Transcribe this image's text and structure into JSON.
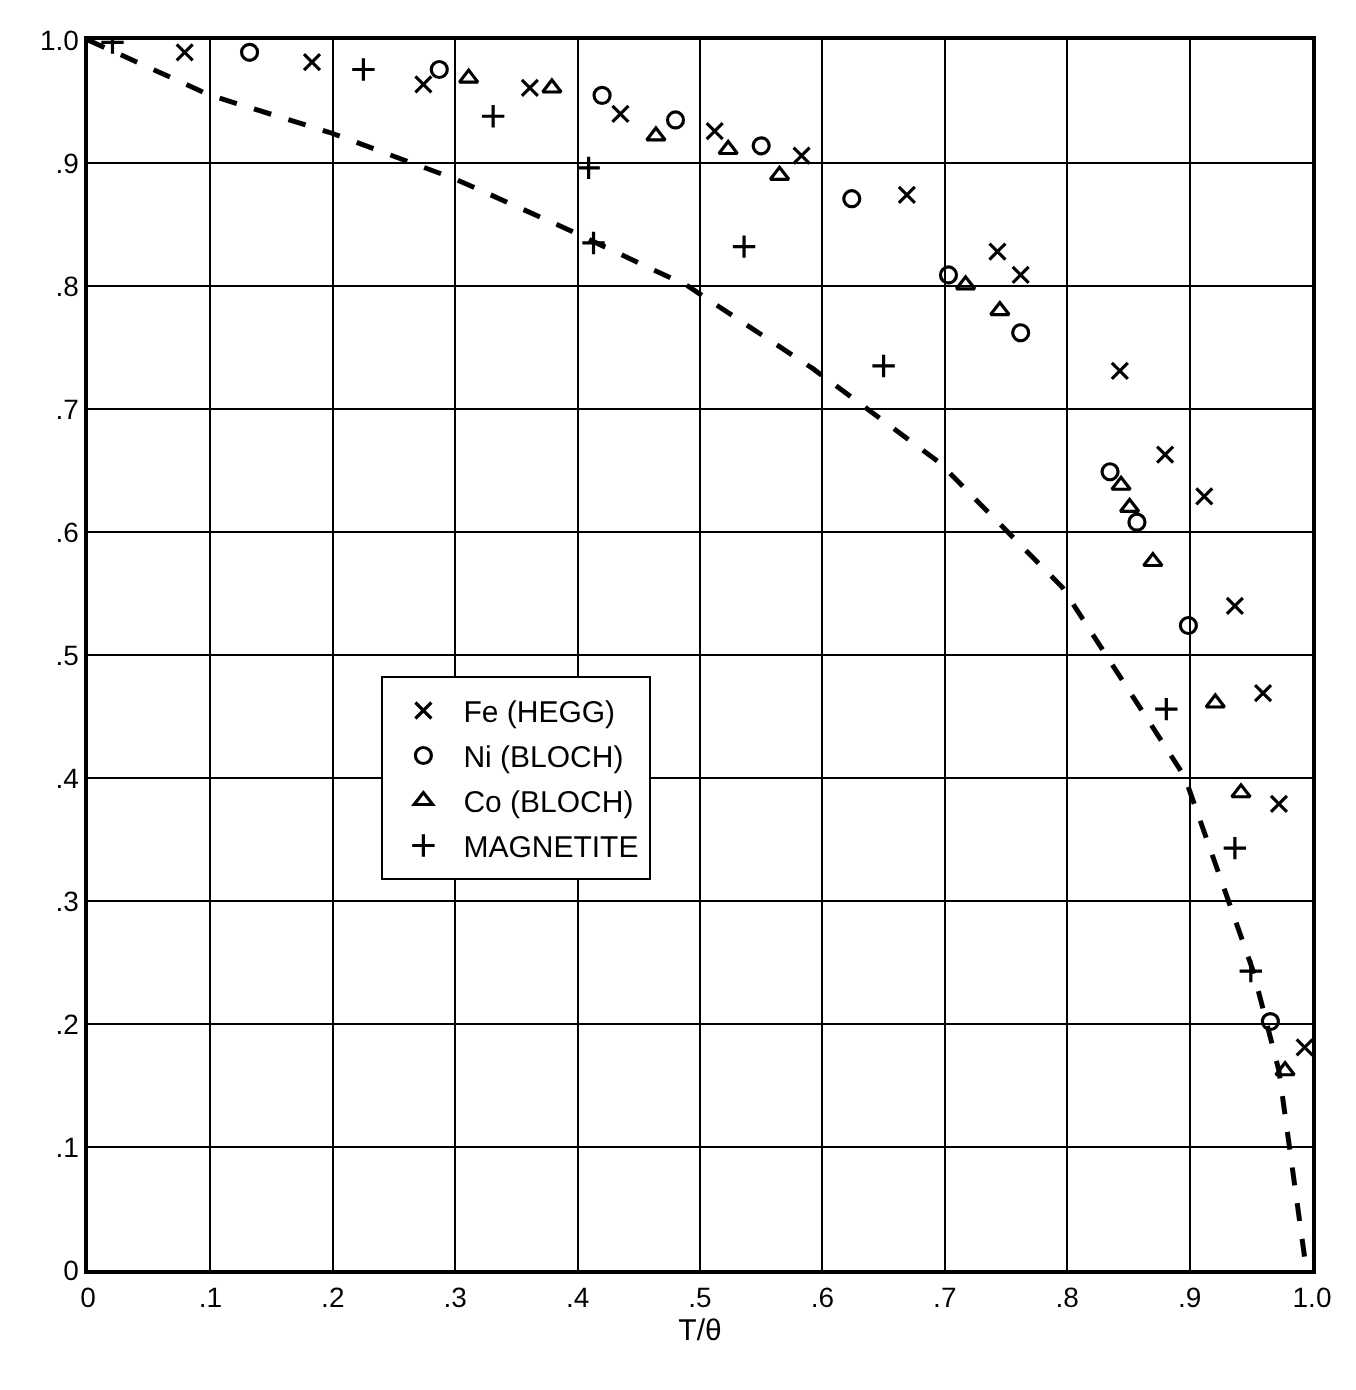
{
  "chart_data": {
    "type": "scatter",
    "xlabel": "T/θ",
    "xlim": [
      0,
      1
    ],
    "ylim": [
      0,
      1
    ],
    "xticks": [
      {
        "value": 0,
        "label": "0"
      },
      {
        "value": 0.1,
        "label": ".1"
      },
      {
        "value": 0.2,
        "label": ".2"
      },
      {
        "value": 0.3,
        "label": ".3"
      },
      {
        "value": 0.4,
        "label": ".4"
      },
      {
        "value": 0.5,
        "label": ".5"
      },
      {
        "value": 0.6,
        "label": ".6"
      },
      {
        "value": 0.7,
        "label": ".7"
      },
      {
        "value": 0.8,
        "label": ".8"
      },
      {
        "value": 0.9,
        "label": ".9"
      },
      {
        "value": 1,
        "label": "1.0"
      }
    ],
    "yticks": [
      {
        "value": 0,
        "label": "0"
      },
      {
        "value": 0.1,
        "label": ".1"
      },
      {
        "value": 0.2,
        "label": ".2"
      },
      {
        "value": 0.3,
        "label": ".3"
      },
      {
        "value": 0.4,
        "label": ".4"
      },
      {
        "value": 0.5,
        "label": ".5"
      },
      {
        "value": 0.6,
        "label": ".6"
      },
      {
        "value": 0.7,
        "label": ".7"
      },
      {
        "value": 0.8,
        "label": ".8"
      },
      {
        "value": 0.9,
        "label": ".9"
      },
      {
        "value": 1,
        "label": "1.0"
      }
    ],
    "grid": true,
    "legend": "center",
    "series": [
      {
        "name": "Fe (HEGG)",
        "color": "#000000",
        "marker": "cross",
        "x": [
          0.079,
          0.183,
          0.274,
          0.361,
          0.435,
          0.512,
          0.583,
          0.669,
          0.743,
          0.762,
          0.843,
          0.88,
          0.912,
          0.937,
          0.96,
          0.973,
          0.994
        ],
        "values": [
          0.99,
          0.982,
          0.964,
          0.961,
          0.94,
          0.926,
          0.906,
          0.874,
          0.828,
          0.809,
          0.731,
          0.663,
          0.629,
          0.54,
          0.469,
          0.379,
          0.181
        ]
      },
      {
        "name": "Ni (BLOCH)",
        "color": "#000000",
        "marker": "circle",
        "x": [
          0.132,
          0.287,
          0.42,
          0.48,
          0.55,
          0.624,
          0.703,
          0.762,
          0.835,
          0.857,
          0.899,
          0.966
        ],
        "values": [
          0.99,
          0.976,
          0.955,
          0.935,
          0.914,
          0.871,
          0.809,
          0.762,
          0.649,
          0.608,
          0.524,
          0.202
        ]
      },
      {
        "name": "Co (BLOCH)",
        "color": "#000000",
        "marker": "triangle",
        "x": [
          0.311,
          0.379,
          0.464,
          0.523,
          0.565,
          0.717,
          0.745,
          0.844,
          0.851,
          0.87,
          0.921,
          0.942,
          0.978
        ],
        "values": [
          0.969,
          0.961,
          0.922,
          0.911,
          0.89,
          0.801,
          0.78,
          0.638,
          0.62,
          0.576,
          0.461,
          0.388,
          0.162
        ]
      },
      {
        "name": "MAGNETITE",
        "color": "#000000",
        "marker": "cross",
        "x": [
          0.02,
          0.225,
          0.331,
          0.409,
          0.413,
          0.536,
          0.65,
          0.881,
          0.937,
          0.95
        ],
        "values": [
          0.998,
          0.976,
          0.938,
          0.896,
          0.835,
          0.832,
          0.735,
          0.456,
          0.343,
          0.243
        ]
      },
      {
        "type": "line",
        "color": "#000000",
        "marker": "none",
        "line_style": "dashed",
        "x": [
          0,
          0.1,
          0.197,
          0.3,
          0.392,
          0.49,
          0.592,
          0.695,
          0.796,
          0.896,
          0.952,
          0.973,
          0.994,
          1
        ],
        "values": [
          1,
          0.955,
          0.925,
          0.887,
          0.846,
          0.8,
          0.733,
          0.657,
          0.555,
          0.401,
          0.243,
          0.162,
          0.01,
          0
        ]
      }
    ]
  }
}
